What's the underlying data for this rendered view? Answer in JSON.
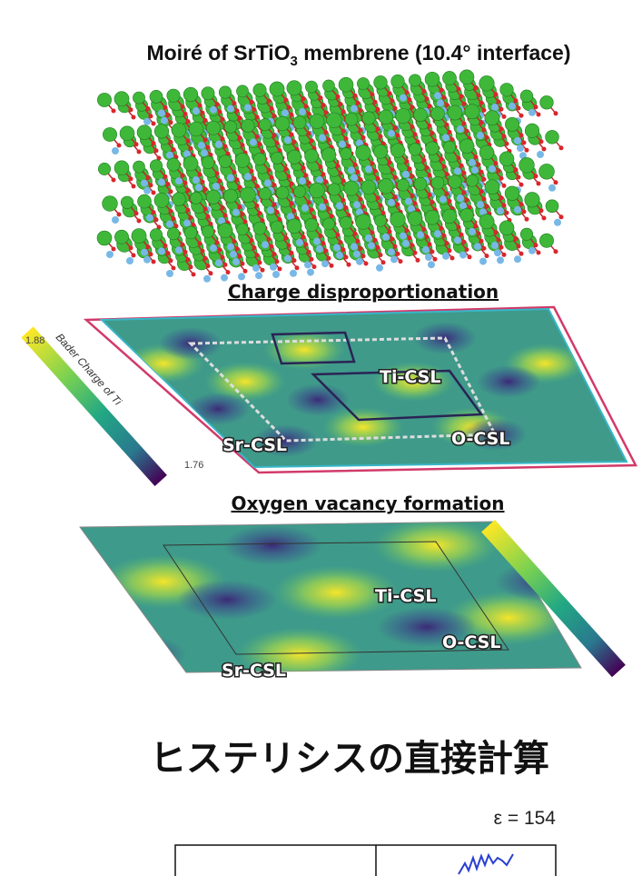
{
  "header": {
    "title_main": "Moiré of SrTiO",
    "title_sub": "3",
    "title_rest": " membrene (10.4° interface)"
  },
  "panels": [
    {
      "heading": "Charge disproportionation",
      "colorbar": {
        "label": "Bader Charge of Ti",
        "max": "1.88",
        "min": "1.76"
      },
      "labels": [
        "Ti-CSL",
        "O-CSL",
        "Sr-CSL"
      ]
    },
    {
      "heading": "Oxygen vacancy formation",
      "labels": [
        "Ti-CSL",
        "O-CSL",
        "Sr-CSL"
      ]
    }
  ],
  "section": {
    "title": "ヒステリシスの直接計算",
    "epsilon": "ε = 154"
  }
}
